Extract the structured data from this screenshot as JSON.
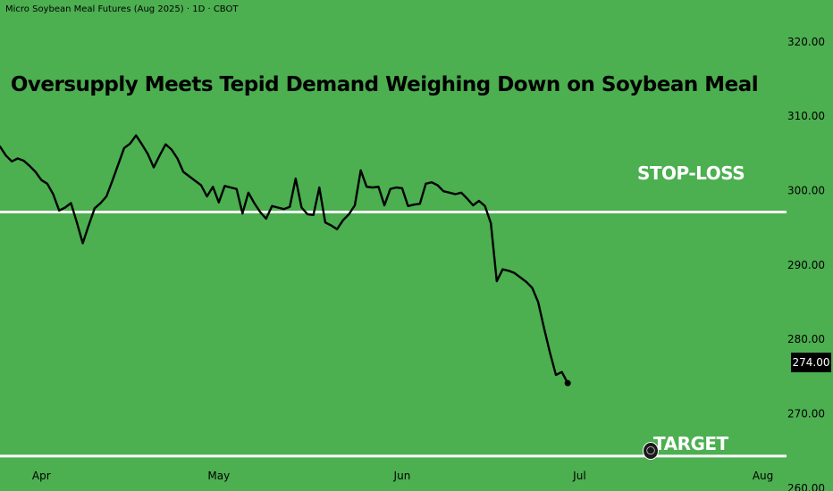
{
  "header": {
    "instrument": "Micro Soybean Meal Futures (Aug 2025) · 1D · CBOT"
  },
  "colors": {
    "background": "#4caf50",
    "price_line": "#000000",
    "level_lines": "#ffffff",
    "text": "#000000"
  },
  "levels": {
    "stop_loss_label": "STOP-LOSS",
    "target_label": "TARGET"
  },
  "last_price_label": "274.00",
  "logo_icon": "tradingview-logo-icon",
  "chart_data": {
    "type": "line",
    "title": "Oversupply Meets Tepid Demand Weighing Down on Soybean Meal",
    "xlabel": "",
    "ylabel": "",
    "ylim": [
      259.5,
      325.5
    ],
    "y_ticks": [
      "320.00",
      "310.00",
      "300.00",
      "290.00",
      "280.00",
      "270.00",
      "260.00"
    ],
    "x_ticks": [
      "Apr",
      "May",
      "Jun",
      "Jul",
      "Aug"
    ],
    "x_tick_days": [
      31,
      61,
      92,
      122,
      153
    ],
    "x_range_days": [
      24,
      157
    ],
    "levels": [
      {
        "name": "STOP-LOSS",
        "value": 297.0
      },
      {
        "name": "TARGET",
        "value": 264.2
      }
    ],
    "series": [
      {
        "x": [
          24,
          25,
          26,
          27,
          28,
          29,
          30,
          31,
          32,
          33,
          34,
          35,
          36,
          37,
          38,
          39,
          40,
          41,
          42,
          43,
          44,
          45,
          46,
          47,
          48,
          49,
          50,
          51,
          52,
          53,
          54,
          55,
          56,
          57,
          58,
          59,
          60,
          61,
          62,
          63,
          64,
          65,
          66,
          67,
          68,
          69,
          70,
          71,
          72,
          73,
          74,
          75,
          76,
          77,
          78,
          79,
          80,
          81,
          82,
          83,
          84,
          85,
          86,
          87,
          88,
          89,
          90,
          91,
          92,
          93,
          94,
          95,
          96,
          97,
          98,
          99,
          100,
          101,
          102,
          103,
          104,
          105,
          106,
          107,
          108,
          109,
          110,
          111,
          112,
          113,
          114,
          115,
          116,
          117,
          118,
          119,
          120
        ],
        "values": [
          305.8,
          304.6,
          303.8,
          304.2,
          303.9,
          303.2,
          302.4,
          301.3,
          300.8,
          299.4,
          297.2,
          297.6,
          298.2,
          295.6,
          292.8,
          295.2,
          297.5,
          298.2,
          299.1,
          301.2,
          303.4,
          305.6,
          306.2,
          307.3,
          306.1,
          304.8,
          303.0,
          304.6,
          306.1,
          305.4,
          304.2,
          302.4,
          301.8,
          301.2,
          300.6,
          299.1,
          300.4,
          298.3,
          300.5,
          300.3,
          300.1,
          296.8,
          299.6,
          298.2,
          297.0,
          296.1,
          297.8,
          297.6,
          297.4,
          297.7,
          301.5,
          297.6,
          296.7,
          296.6,
          300.3,
          295.6,
          295.2,
          294.7,
          295.9,
          296.7,
          297.9,
          302.6,
          300.4,
          300.3,
          300.4,
          297.9,
          300.1,
          300.3,
          300.2,
          297.8,
          298.0,
          298.1,
          300.8,
          301.0,
          300.6,
          299.8,
          299.6,
          299.4,
          299.6,
          298.8,
          297.9,
          298.5,
          297.8,
          295.5,
          287.7,
          289.3,
          289.1,
          288.8,
          288.2,
          287.6,
          286.8,
          284.9,
          281.4,
          278.1,
          275.1,
          275.5,
          274.0
        ]
      }
    ]
  }
}
